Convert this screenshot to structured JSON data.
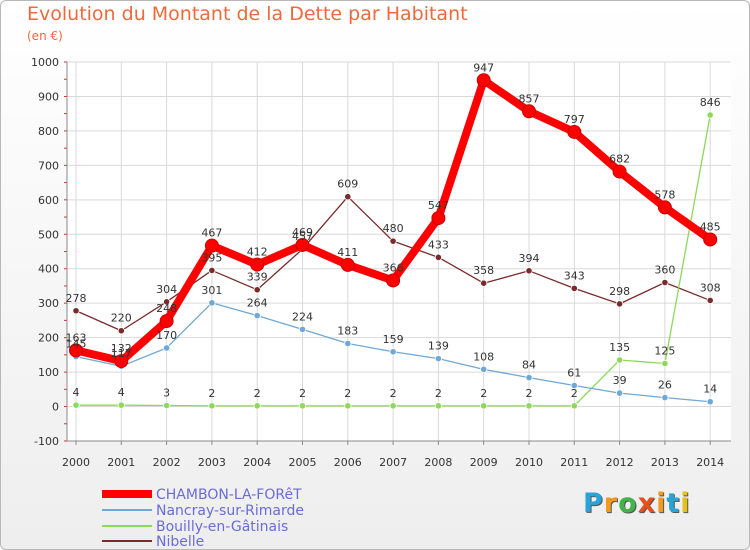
{
  "header": {
    "title": "Evolution du Montant de la Dette par Habitant",
    "unit": "(en €)"
  },
  "logo": {
    "letters": [
      "P",
      "r",
      "o",
      "x",
      "i",
      "t",
      "i"
    ],
    "colors": [
      "#2aa4d8",
      "#f39a1e",
      "#43b34a",
      "#e84e1b",
      "#f39a1e",
      "#2aa4d8",
      "#e2c21b"
    ]
  },
  "chart_data": {
    "type": "line",
    "title": "Evolution du Montant de la Dette par Habitant",
    "ylabel": "(en €)",
    "xlabel": "",
    "ylim": [
      -100,
      1000
    ],
    "yticks": [
      -100,
      0,
      100,
      200,
      300,
      400,
      500,
      600,
      700,
      800,
      900,
      1000
    ],
    "grid": true,
    "legend_position": "bottom-left",
    "x": [
      2000,
      2001,
      2002,
      2003,
      2004,
      2005,
      2006,
      2007,
      2008,
      2009,
      2010,
      2011,
      2012,
      2013,
      2014
    ],
    "series": [
      {
        "name": "CHAMBON-LA-FORêT",
        "color": "#ff0000",
        "values": [
          163,
          132,
          248,
          467,
          412,
          469,
          411,
          366,
          547,
          947,
          857,
          797,
          682,
          578,
          485
        ]
      },
      {
        "name": "Nancray-sur-Rimarde",
        "color": "#6ea8d6",
        "values": [
          145,
          117,
          170,
          301,
          264,
          224,
          183,
          159,
          139,
          108,
          84,
          61,
          39,
          26,
          14
        ]
      },
      {
        "name": "Bouilly-en-Gâtinais",
        "color": "#8ed85a",
        "values": [
          4,
          4,
          3,
          2,
          2,
          2,
          2,
          2,
          2,
          2,
          2,
          2,
          135,
          125,
          846
        ]
      },
      {
        "name": "Nibelle",
        "color": "#7a2b2b",
        "values": [
          278,
          220,
          304,
          395,
          339,
          457,
          609,
          480,
          433,
          358,
          394,
          343,
          298,
          360,
          308
        ]
      }
    ]
  }
}
